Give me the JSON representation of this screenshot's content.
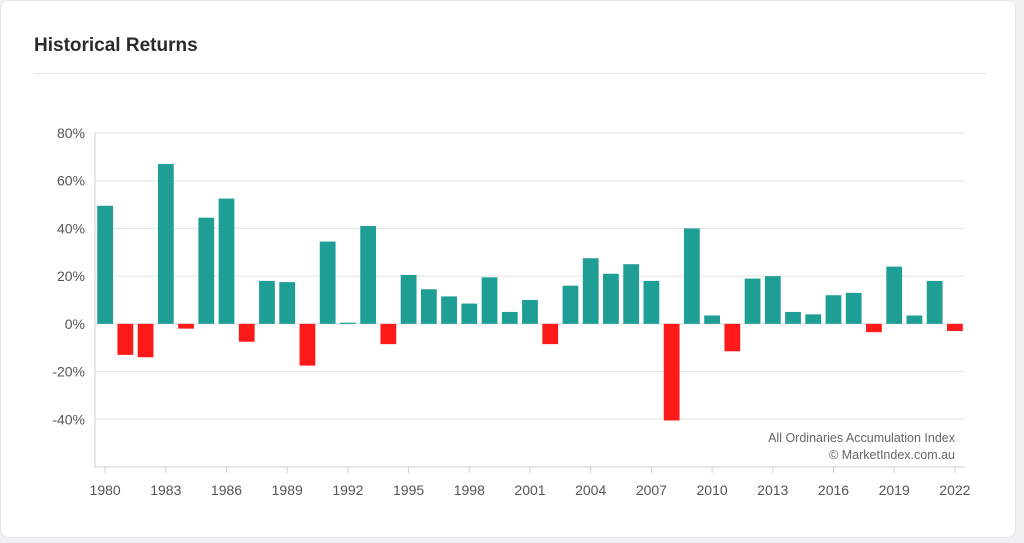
{
  "header": {
    "title": "Historical Returns"
  },
  "colors": {
    "positive": "#1f9e96",
    "negative": "#ff1a1a",
    "grid": "#e2e2e2",
    "axis": "#cfcfcf"
  },
  "chart_data": {
    "type": "bar",
    "title": "Historical Returns",
    "xlabel": "",
    "ylabel": "",
    "ylim": [
      -60,
      80
    ],
    "yticks": [
      "80%",
      "60%",
      "40%",
      "20%",
      "0%",
      "-20%",
      "-40%"
    ],
    "ytick_values": [
      80,
      60,
      40,
      20,
      0,
      -20,
      -40
    ],
    "xtick_labels": [
      "1980",
      "1983",
      "1986",
      "1989",
      "1992",
      "1995",
      "1998",
      "2001",
      "2004",
      "2007",
      "2010",
      "2013",
      "2016",
      "2019",
      "2022"
    ],
    "grid": true,
    "categories": [
      "1980",
      "1981",
      "1982",
      "1983",
      "1984",
      "1985",
      "1986",
      "1987",
      "1988",
      "1989",
      "1990",
      "1991",
      "1992",
      "1993",
      "1994",
      "1995",
      "1996",
      "1997",
      "1998",
      "1999",
      "2000",
      "2001",
      "2002",
      "2003",
      "2004",
      "2005",
      "2006",
      "2007",
      "2008",
      "2009",
      "2010",
      "2011",
      "2012",
      "2013",
      "2014",
      "2015",
      "2016",
      "2017",
      "2018",
      "2019",
      "2020",
      "2021",
      "2022"
    ],
    "values": [
      49.5,
      -13,
      -14,
      67,
      -2,
      44.5,
      52.5,
      -7.5,
      18,
      17.5,
      -17.5,
      34.5,
      0.5,
      41,
      -8.5,
      20.5,
      14.5,
      11.5,
      8.5,
      19.5,
      5,
      10,
      -8.5,
      16,
      27.5,
      21,
      25,
      18,
      -40.5,
      40,
      3.5,
      -11.5,
      19,
      20,
      5,
      4,
      12,
      13,
      -3.5,
      24,
      3.5,
      18,
      -3
    ],
    "annotation": [
      "All Ordinaries Accumulation Index",
      "© MarketIndex.com.au"
    ]
  }
}
